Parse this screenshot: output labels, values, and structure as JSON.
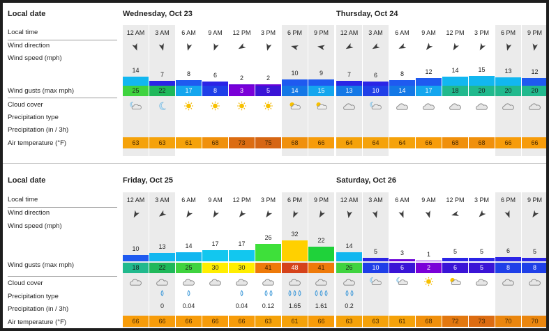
{
  "row_labels": {
    "local_date": "Local date",
    "local_time": "Local time",
    "wind_direction": "Wind direction",
    "wind_speed": "Wind speed  (mph)",
    "wind_gusts": "Wind gusts  (max mph)",
    "cloud_cover": "Cloud cover",
    "precip_type": "Precipitation type",
    "precip": "Precipitation  (in / 3h)",
    "air_temp": "Air temperature  (°F)"
  },
  "blocks": [
    {
      "days": [
        {
          "title": "Wednesday, Oct 23",
          "slots": [
            {
              "time": "12 AM",
              "dir": 160,
              "speed": 14,
              "gust": 25,
              "cloud": "moon-cloud-icon",
              "ptype": "",
              "precip": "",
              "temp": 63
            },
            {
              "time": "3 AM",
              "dir": 165,
              "speed": 7,
              "gust": 22,
              "cloud": "moon-icon",
              "ptype": "",
              "precip": "",
              "temp": 63
            },
            {
              "time": "6 AM",
              "dir": 195,
              "speed": 8,
              "gust": 17,
              "cloud": "sun-icon",
              "ptype": "",
              "precip": "",
              "temp": 61
            },
            {
              "time": "9 AM",
              "dir": 200,
              "speed": 6,
              "gust": 8,
              "cloud": "sun-icon",
              "ptype": "",
              "precip": "",
              "temp": 68
            },
            {
              "time": "12 PM",
              "dir": 240,
              "speed": 2,
              "gust": 3,
              "cloud": "sun-icon",
              "ptype": "",
              "precip": "",
              "temp": 73
            },
            {
              "time": "3 PM",
              "dir": 195,
              "speed": 2,
              "gust": 5,
              "cloud": "sun-icon",
              "ptype": "",
              "precip": "",
              "temp": 75
            },
            {
              "time": "6 PM",
              "dir": 285,
              "speed": 10,
              "gust": 14,
              "cloud": "sun-cloud-icon",
              "ptype": "",
              "precip": "",
              "temp": 68
            },
            {
              "time": "9 PM",
              "dir": 280,
              "speed": 9,
              "gust": 15,
              "cloud": "sun-cloud-icon",
              "ptype": "",
              "precip": "",
              "temp": 66
            }
          ]
        },
        {
          "title": "Thursday, Oct 24",
          "slots": [
            {
              "time": "12 AM",
              "dir": 240,
              "speed": 7,
              "gust": 13,
              "cloud": "cloud-icon",
              "ptype": "",
              "precip": "",
              "temp": 64
            },
            {
              "time": "3 AM",
              "dir": 240,
              "speed": 6,
              "gust": 10,
              "cloud": "moon-cloud-icon",
              "ptype": "",
              "precip": "",
              "temp": 64
            },
            {
              "time": "6 AM",
              "dir": 245,
              "speed": 8,
              "gust": 14,
              "cloud": "cloud-icon",
              "ptype": "",
              "precip": "",
              "temp": 64
            },
            {
              "time": "9 AM",
              "dir": 220,
              "speed": 12,
              "gust": 17,
              "cloud": "cloud-icon",
              "ptype": "",
              "precip": "",
              "temp": 66
            },
            {
              "time": "12 PM",
              "dir": 210,
              "speed": 14,
              "gust": 18,
              "cloud": "cloud-icon",
              "ptype": "",
              "precip": "",
              "temp": 68
            },
            {
              "time": "3 PM",
              "dir": 210,
              "speed": 15,
              "gust": 20,
              "cloud": "cloud-icon",
              "ptype": "",
              "precip": "",
              "temp": 68
            },
            {
              "time": "6 PM",
              "dir": 195,
              "speed": 13,
              "gust": 20,
              "cloud": "cloud-icon",
              "ptype": "",
              "precip": "",
              "temp": 66
            },
            {
              "time": "9 PM",
              "dir": 190,
              "speed": 12,
              "gust": 20,
              "cloud": "cloud-icon",
              "ptype": "",
              "precip": "",
              "temp": 66
            }
          ]
        }
      ]
    },
    {
      "days": [
        {
          "title": "Friday, Oct 25",
          "slots": [
            {
              "time": "12 AM",
              "dir": 210,
              "speed": 10,
              "gust": 18,
              "cloud": "cloud-icon",
              "ptype": "",
              "precip": "",
              "temp": 66
            },
            {
              "time": "3 AM",
              "dir": 235,
              "speed": 13,
              "gust": 22,
              "cloud": "cloud-icon",
              "ptype": "drop-icon",
              "precip": "0",
              "temp": 66
            },
            {
              "time": "6 AM",
              "dir": 215,
              "speed": 14,
              "gust": 25,
              "cloud": "cloud-icon",
              "ptype": "drop-icon",
              "precip": "0.04",
              "temp": 66
            },
            {
              "time": "9 AM",
              "dir": 210,
              "speed": 17,
              "gust": 30,
              "cloud": "cloud-icon",
              "ptype": "",
              "precip": "",
              "temp": 66
            },
            {
              "time": "12 PM",
              "dir": 220,
              "speed": 17,
              "gust": 30,
              "cloud": "cloud-icon",
              "ptype": "drop-icon",
              "precip": "0.04",
              "temp": 66
            },
            {
              "time": "3 PM",
              "dir": 215,
              "speed": 26,
              "gust": 41,
              "cloud": "cloud-icon",
              "ptype": "drops-2-icon",
              "precip": "0.12",
              "temp": 63
            },
            {
              "time": "6 PM",
              "dir": 205,
              "speed": 32,
              "gust": 48,
              "cloud": "cloud-icon",
              "ptype": "drops-3-icon",
              "precip": "1.65",
              "temp": 61
            },
            {
              "time": "9 PM",
              "dir": 210,
              "speed": 22,
              "gust": 41,
              "cloud": "cloud-icon",
              "ptype": "drops-3-icon",
              "precip": "1.61",
              "temp": 66
            }
          ]
        },
        {
          "title": "Saturday, Oct 26",
          "slots": [
            {
              "time": "12 AM",
              "dir": 190,
              "speed": 14,
              "gust": 26,
              "cloud": "cloud-icon",
              "ptype": "drops-2-icon",
              "precip": "0.2",
              "temp": 63
            },
            {
              "time": "3 AM",
              "dir": 165,
              "speed": 5,
              "gust": 10,
              "cloud": "moon-cloud-icon",
              "ptype": "",
              "precip": "",
              "temp": 63
            },
            {
              "time": "6 AM",
              "dir": 160,
              "speed": 3,
              "gust": 6,
              "cloud": "moon-cloud-icon",
              "ptype": "",
              "precip": "",
              "temp": 61
            },
            {
              "time": "9 AM",
              "dir": 165,
              "speed": 1,
              "gust": 2,
              "cloud": "sun-icon",
              "ptype": "",
              "precip": "",
              "temp": 68
            },
            {
              "time": "12 PM",
              "dir": 255,
              "speed": 5,
              "gust": 6,
              "cloud": "sun-cloud-icon",
              "ptype": "",
              "precip": "",
              "temp": 72
            },
            {
              "time": "3 PM",
              "dir": 225,
              "speed": 5,
              "gust": 5,
              "cloud": "cloud-icon",
              "ptype": "",
              "precip": "",
              "temp": 73
            },
            {
              "time": "6 PM",
              "dir": 160,
              "speed": 6,
              "gust": 8,
              "cloud": "cloud-icon",
              "ptype": "",
              "precip": "",
              "temp": 70
            },
            {
              "time": "9 PM",
              "dir": 215,
              "speed": 5,
              "gust": 8,
              "cloud": "cloud-icon",
              "ptype": "",
              "precip": "",
              "temp": 70
            }
          ]
        }
      ]
    }
  ]
}
